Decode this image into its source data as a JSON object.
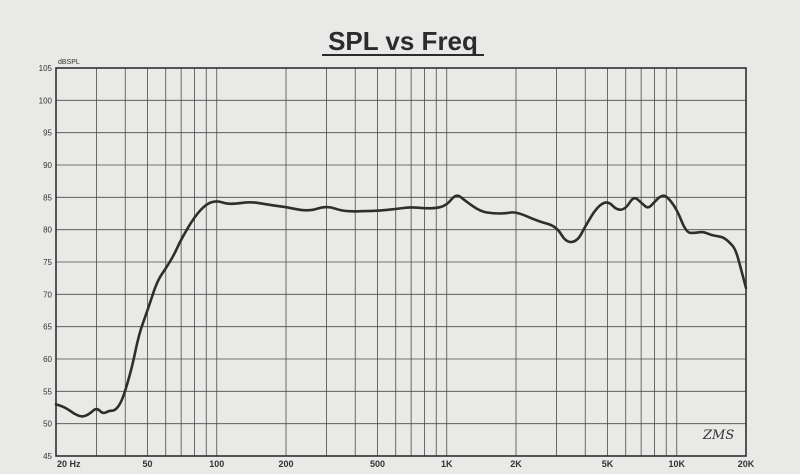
{
  "chart_data": {
    "type": "line",
    "title": "SPL vs Freq",
    "ylabel": "dBSPL",
    "xscale": "log",
    "xlim": [
      20,
      20000
    ],
    "ylim": [
      45,
      105
    ],
    "grid": true,
    "y_ticks": [
      "105",
      "100",
      "95",
      "90",
      "85",
      "80",
      "75",
      "70",
      "65",
      "60",
      "55",
      "50",
      "45"
    ],
    "x_ticks": [
      {
        "value": 20,
        "label": "20 Hz"
      },
      {
        "value": 50,
        "label": "50"
      },
      {
        "value": 100,
        "label": "100"
      },
      {
        "value": 200,
        "label": "200"
      },
      {
        "value": 500,
        "label": "500"
      },
      {
        "value": 1000,
        "label": "1K"
      },
      {
        "value": 2000,
        "label": "2K"
      },
      {
        "value": 5000,
        "label": "5K"
      },
      {
        "value": 10000,
        "label": "10K"
      },
      {
        "value": 20000,
        "label": "20K"
      }
    ],
    "series": [
      {
        "x": [
          20,
          22,
          24,
          26,
          28,
          30,
          32,
          34,
          36,
          38,
          40,
          43,
          46,
          50,
          55,
          60,
          65,
          70,
          80,
          90,
          100,
          110,
          120,
          140,
          160,
          180,
          200,
          250,
          300,
          350,
          400,
          450,
          500,
          600,
          700,
          800,
          900,
          1000,
          1100,
          1200,
          1400,
          1600,
          1800,
          2000,
          2500,
          3000,
          3300,
          3700,
          4000,
          4500,
          5000,
          5500,
          6000,
          6500,
          7000,
          7500,
          8000,
          8500,
          9000,
          10000,
          11000,
          12000,
          13000,
          14000,
          15000,
          16000,
          17000,
          18000,
          19000,
          20000
        ],
        "y": [
          53,
          52.5,
          51.5,
          51,
          51.5,
          52.5,
          51.5,
          52,
          52,
          53,
          55,
          59,
          64,
          67.5,
          72,
          74,
          76,
          78.5,
          82,
          84,
          84.5,
          84,
          84,
          84.3,
          84,
          83.7,
          83.5,
          82.8,
          83.7,
          82.9,
          82.8,
          82.9,
          82.9,
          83.2,
          83.5,
          83.3,
          83.3,
          83.8,
          85.6,
          84.5,
          82.8,
          82.5,
          82.5,
          82.8,
          81.3,
          80.5,
          78,
          78.2,
          80.5,
          83.5,
          84.5,
          83,
          83.2,
          85.2,
          84.2,
          83.2,
          84.3,
          85.2,
          85.3,
          83.2,
          79.5,
          79.5,
          79.7,
          79.2,
          79,
          78.8,
          78,
          77,
          74,
          71
        ]
      }
    ],
    "signature": "ZMS"
  }
}
